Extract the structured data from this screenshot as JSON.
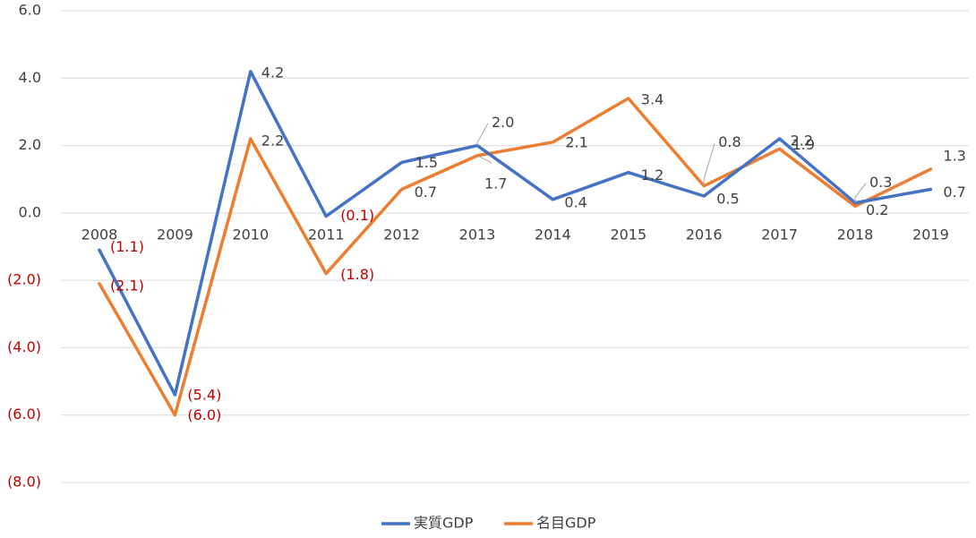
{
  "chart_data": {
    "type": "line",
    "categories": [
      "2008",
      "2009",
      "2010",
      "2011",
      "2012",
      "2013",
      "2014",
      "2015",
      "2016",
      "2017",
      "2018",
      "2019"
    ],
    "series": [
      {
        "name": "実質GDP",
        "color": "#4472C4",
        "values": [
          -1.1,
          -5.4,
          4.2,
          -0.1,
          1.5,
          2.0,
          0.4,
          1.2,
          0.5,
          2.2,
          0.3,
          0.7
        ],
        "labels": [
          "(1.1)",
          "(5.4)",
          "4.2",
          "(0.1)",
          "1.5",
          "2.0",
          "0.4",
          "1.2",
          "0.5",
          "2.2",
          "0.3",
          "0.7"
        ]
      },
      {
        "name": "名目GDP",
        "color": "#ED7D31",
        "values": [
          -2.1,
          -6.0,
          2.2,
          -1.8,
          0.7,
          1.7,
          2.1,
          3.4,
          0.8,
          1.9,
          0.2,
          1.3
        ],
        "labels": [
          "(2.1)",
          "(6.0)",
          "2.2",
          "(1.8)",
          "0.7",
          "1.7",
          "2.1",
          "3.4",
          "0.8",
          "1.9",
          "0.2",
          "1.3"
        ]
      }
    ],
    "yticks": [
      "6.0",
      "4.0",
      "2.0",
      "0.0",
      "(2.0)",
      "(4.0)",
      "(6.0)",
      "(8.0)"
    ],
    "ytick_values": [
      6,
      4,
      2,
      0,
      -2,
      -4,
      -6,
      -8
    ],
    "ylim": [
      -8,
      6
    ],
    "negative_color": "#C00000",
    "positive_color": "#404040",
    "grid": true,
    "legend_position": "bottom",
    "title": "",
    "xlabel": "",
    "ylabel": ""
  }
}
